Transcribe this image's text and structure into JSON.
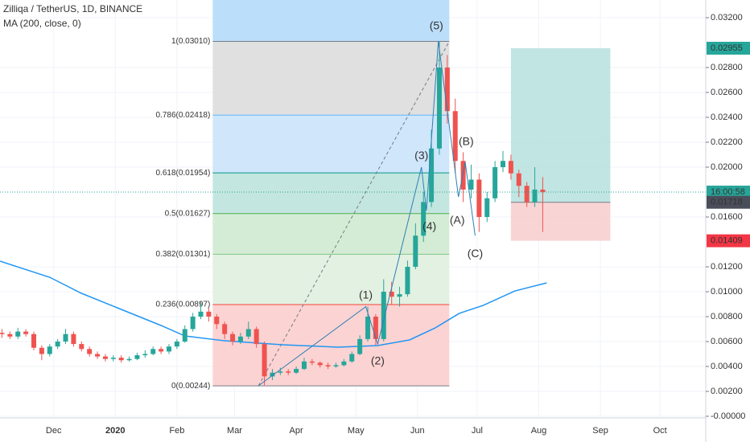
{
  "chart_data": {
    "type": "candlestick",
    "title": "Zilliqa / TetherUS, 1D, BINANCE",
    "subtitle": "MA (200, close, 0)",
    "xlim": [
      -27,
      328
    ],
    "ylim": [
      -0.00013,
      0.03342
    ],
    "xticks": [
      {
        "value": 0,
        "label": "Dec"
      },
      {
        "value": 31,
        "label": "2020"
      },
      {
        "value": 62,
        "label": "Feb"
      },
      {
        "value": 91,
        "label": "Mar"
      },
      {
        "value": 122,
        "label": "Apr"
      },
      {
        "value": 152,
        "label": "May"
      },
      {
        "value": 183,
        "label": "Jun"
      },
      {
        "value": 213,
        "label": "Jul"
      },
      {
        "value": 244,
        "label": "Aug"
      },
      {
        "value": 275,
        "label": "Sep"
      },
      {
        "value": 305,
        "label": "Oct"
      }
    ],
    "bold_xtick": "2020",
    "yticks": [
      {
        "value": 0,
        "label": "-0.00000"
      },
      {
        "value": 0.002,
        "label": "0.00200"
      },
      {
        "value": 0.004,
        "label": "0.00400"
      },
      {
        "value": 0.006,
        "label": "0.00600"
      },
      {
        "value": 0.008,
        "label": "0.00800"
      },
      {
        "value": 0.01,
        "label": "0.01000"
      },
      {
        "value": 0.012,
        "label": "0.01200"
      },
      {
        "value": 0.016,
        "label": "0.01600"
      },
      {
        "value": 0.02,
        "label": "0.02000"
      },
      {
        "value": 0.022,
        "label": "0.02200"
      },
      {
        "value": 0.024,
        "label": "0.02400"
      },
      {
        "value": 0.026,
        "label": "0.02600"
      },
      {
        "value": 0.028,
        "label": "0.02800"
      },
      {
        "value": 0.032,
        "label": "0.03200"
      }
    ],
    "grid": true,
    "up_color": "#26a69a",
    "down_color": "#ef5350",
    "x": [
      -26,
      -22,
      -18,
      -14,
      -10,
      -6,
      -2,
      2,
      6,
      10,
      14,
      18,
      22,
      26,
      30,
      34,
      38,
      42,
      46,
      50,
      54,
      58,
      62,
      66,
      70,
      74,
      78,
      82,
      86,
      90,
      94,
      98,
      102,
      106,
      110,
      114,
      118,
      122,
      126,
      130,
      134,
      138,
      142,
      146,
      150,
      154,
      158,
      162,
      166,
      170,
      174,
      178,
      182,
      186,
      190,
      194,
      198,
      202,
      206,
      210,
      214,
      218,
      222,
      226,
      230,
      234,
      238,
      242,
      246
    ],
    "open": [
      0.0067,
      0.0066,
      0.0064,
      0.0068,
      0.0066,
      0.0055,
      0.005,
      0.0056,
      0.006,
      0.0066,
      0.0058,
      0.0054,
      0.005,
      0.0048,
      0.0046,
      0.0047,
      0.0045,
      0.0046,
      0.0049,
      0.005,
      0.0054,
      0.0052,
      0.0056,
      0.006,
      0.007,
      0.008,
      0.0084,
      0.008,
      0.0074,
      0.0066,
      0.006,
      0.0064,
      0.007,
      0.0058,
      0.0032,
      0.0035,
      0.0036,
      0.0035,
      0.0038,
      0.0044,
      0.0043,
      0.0041,
      0.004,
      0.0041,
      0.0044,
      0.005,
      0.0062,
      0.008,
      0.0062,
      0.01,
      0.0096,
      0.0098,
      0.012,
      0.0145,
      0.0172,
      0.0215,
      0.028,
      0.0245,
      0.0205,
      0.0182,
      0.019,
      0.016,
      0.0175,
      0.02,
      0.0205,
      0.0195,
      0.0185,
      0.0172,
      0.0182
    ],
    "high": [
      0.007,
      0.0068,
      0.0071,
      0.007,
      0.0068,
      0.0057,
      0.0058,
      0.0062,
      0.007,
      0.0068,
      0.006,
      0.0056,
      0.0052,
      0.005,
      0.0049,
      0.0049,
      0.0048,
      0.0051,
      0.0053,
      0.0056,
      0.0056,
      0.0058,
      0.0062,
      0.0073,
      0.0083,
      0.0092,
      0.0087,
      0.0082,
      0.0076,
      0.0068,
      0.0067,
      0.0076,
      0.0072,
      0.006,
      0.0038,
      0.0039,
      0.0038,
      0.004,
      0.0047,
      0.0046,
      0.0044,
      0.0043,
      0.0043,
      0.0046,
      0.0052,
      0.0065,
      0.0088,
      0.0082,
      0.011,
      0.0108,
      0.0104,
      0.0125,
      0.0155,
      0.018,
      0.023,
      0.0301,
      0.029,
      0.0255,
      0.0212,
      0.0202,
      0.0195,
      0.018,
      0.0205,
      0.0213,
      0.021,
      0.0198,
      0.0188,
      0.02,
      0.0192
    ],
    "low": [
      0.0063,
      0.0062,
      0.0062,
      0.0064,
      0.0053,
      0.0045,
      0.0048,
      0.0054,
      0.0058,
      0.0056,
      0.0052,
      0.0048,
      0.0046,
      0.0044,
      0.0044,
      0.0043,
      0.0044,
      0.0045,
      0.0047,
      0.0049,
      0.005,
      0.005,
      0.0054,
      0.0059,
      0.0068,
      0.0078,
      0.0076,
      0.007,
      0.0062,
      0.0057,
      0.0058,
      0.0062,
      0.0055,
      0.0025,
      0.0029,
      0.0033,
      0.0033,
      0.0034,
      0.0037,
      0.0041,
      0.0039,
      0.0038,
      0.0039,
      0.004,
      0.0043,
      0.0049,
      0.006,
      0.0057,
      0.006,
      0.009,
      0.0088,
      0.0096,
      0.0118,
      0.014,
      0.0168,
      0.021,
      0.0235,
      0.0195,
      0.0172,
      0.0175,
      0.0148,
      0.0156,
      0.0172,
      0.0196,
      0.019,
      0.0176,
      0.0168,
      0.0168,
      0.0148
    ],
    "close": [
      0.0066,
      0.0064,
      0.0068,
      0.0066,
      0.0055,
      0.005,
      0.0056,
      0.006,
      0.0066,
      0.0058,
      0.0054,
      0.005,
      0.0048,
      0.0046,
      0.0047,
      0.0045,
      0.0046,
      0.0049,
      0.005,
      0.0054,
      0.0052,
      0.0056,
      0.006,
      0.007,
      0.008,
      0.0084,
      0.008,
      0.0074,
      0.0066,
      0.006,
      0.0064,
      0.007,
      0.0058,
      0.0032,
      0.0035,
      0.0036,
      0.0035,
      0.0038,
      0.0044,
      0.0043,
      0.0041,
      0.004,
      0.0041,
      0.0044,
      0.005,
      0.0062,
      0.008,
      0.0062,
      0.01,
      0.0096,
      0.0098,
      0.012,
      0.0145,
      0.0172,
      0.0215,
      0.028,
      0.0245,
      0.0205,
      0.0182,
      0.019,
      0.016,
      0.0175,
      0.02,
      0.0205,
      0.0195,
      0.0185,
      0.0172,
      0.0182,
      0.018
    ],
    "ma": {
      "color": "#2196f3",
      "x": [
        -27,
        -2,
        14,
        34,
        54,
        66,
        86,
        115,
        143,
        163,
        179,
        192,
        204,
        216,
        232,
        248
      ],
      "values": [
        0.01245,
        0.01116,
        0.00987,
        0.00858,
        0.00729,
        0.00645,
        0.00606,
        0.00574,
        0.00555,
        0.00568,
        0.00613,
        0.0071,
        0.00826,
        0.0089,
        0.01006,
        0.01071
      ]
    },
    "fib": {
      "x": [
        80,
        199
      ],
      "trend_x": [
        103,
        199
      ],
      "top_fill": "#bbdefb",
      "levels": [
        {
          "price": 0.0301,
          "label": "1(0.03010)",
          "color": "#787b86",
          "fill": "#e0e0e0"
        },
        {
          "price": 0.02418,
          "label": "0.786(0.02418)",
          "color": "#64b5f6",
          "fill": "#cfe6fb"
        },
        {
          "price": 0.01954,
          "label": "0.618(0.01954)",
          "color": "#009688",
          "fill": "#c4e6e0"
        },
        {
          "price": 0.01627,
          "label": "0.5(0.01627)",
          "color": "#4caf50",
          "fill": "#d4ecd5"
        },
        {
          "price": 0.01301,
          "label": "0.382(0.01301)",
          "color": "#81c784",
          "fill": "#e3f1e2"
        },
        {
          "price": 0.00897,
          "label": "0.236(0.00897)",
          "color": "#f44336",
          "fill": "#fcd3d3"
        },
        {
          "price": 0.00244,
          "label": "0(0.00244)",
          "color": "#787b86",
          "fill": "#fcd3d3"
        }
      ]
    },
    "wave": {
      "color": "#2e7fb5",
      "x": [
        103,
        157,
        163,
        185,
        187.5,
        193.5,
        203.6,
        207,
        212
      ],
      "values": [
        0.00245,
        0.0088,
        0.0058,
        0.02,
        0.01652,
        0.0301,
        0.01761,
        0.0204,
        0.0145
      ]
    },
    "annotations": [
      {
        "text": "(1)",
        "x": 157,
        "y": 0.0097
      },
      {
        "text": "(2)",
        "x": 163,
        "y": 0.0044
      },
      {
        "text": "(3)",
        "x": 185,
        "y": 0.0209
      },
      {
        "text": "(4)",
        "x": 189,
        "y": 0.0152
      },
      {
        "text": "(5)",
        "x": 192.5,
        "y": 0.0313
      },
      {
        "text": "(A)",
        "x": 203,
        "y": 0.0157
      },
      {
        "text": "(B)",
        "x": 207.5,
        "y": 0.022
      },
      {
        "text": "(C)",
        "x": 212,
        "y": 0.013
      }
    ],
    "position": {
      "x": [
        230,
        280
      ],
      "target": 0.02955,
      "entry": 0.01718,
      "stop": 0.01409,
      "profit_fill": "#b2dfdb",
      "loss_fill": "#f8c9c9"
    },
    "price_labels": [
      {
        "value": 0.02955,
        "label": "0.02955",
        "color": "#26a69a"
      },
      {
        "value": 0.01718,
        "label": "0.01718",
        "color": "#4a4e5a"
      },
      {
        "value": 0.01409,
        "label": "0.01409",
        "color": "#f23645"
      }
    ],
    "countdown": "16:00:58",
    "countdown_color": "#26a69a"
  }
}
